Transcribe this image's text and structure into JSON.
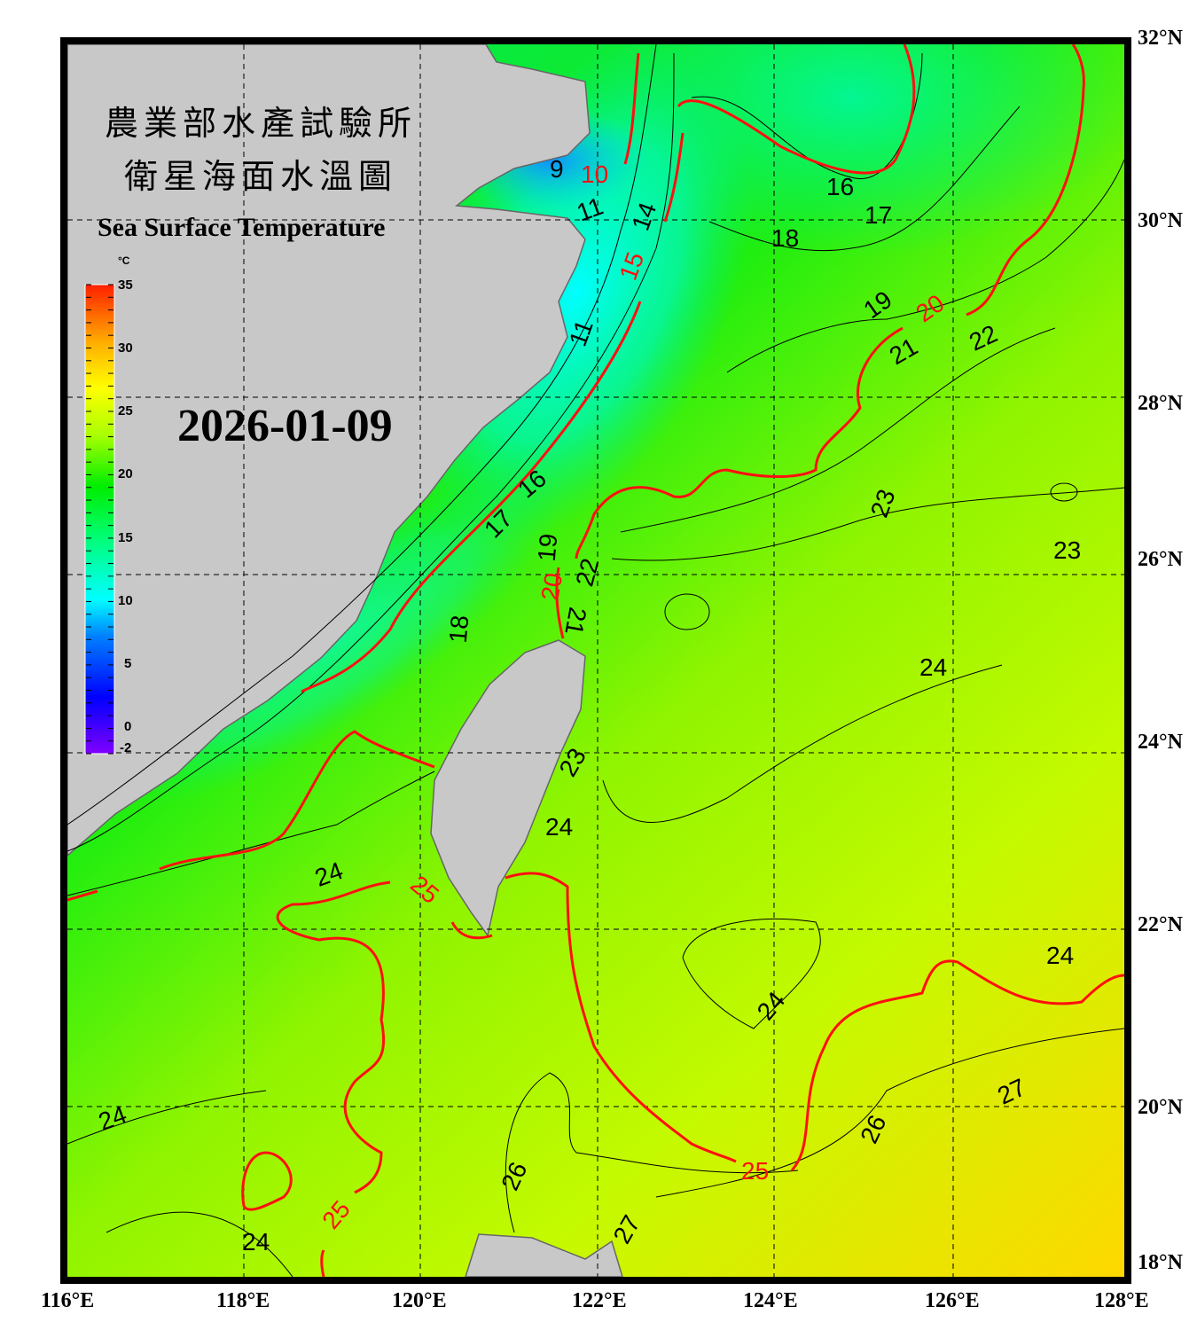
{
  "title_cn_line1": "農業部水產試驗所",
  "title_cn_line2": "衛星海面水溫圖",
  "title_en": "Sea Surface Temperature",
  "date": "2026-01-09",
  "colorbar": {
    "unit": "°C",
    "min": -2,
    "max": 35,
    "ticks": [
      "35",
      "30",
      "25",
      "20",
      "15",
      "10",
      "5",
      "0",
      "-2"
    ],
    "colors": [
      "#8000ff",
      "#0000ff",
      "#0080ff",
      "#00ffff",
      "#00ff80",
      "#00ee00",
      "#aaff00",
      "#ffff00",
      "#ffaa00",
      "#ff2000"
    ]
  },
  "lon_labels": [
    "116°E",
    "118°E",
    "120°E",
    "122°E",
    "124°E",
    "126°E",
    "128°E"
  ],
  "lat_labels": [
    "32°N",
    "30°N",
    "28°N",
    "26°N",
    "24°N",
    "22°N",
    "20°N",
    "18°N"
  ],
  "contour_labels": [
    "9",
    "10",
    "11",
    "14",
    "15",
    "11",
    "16",
    "17",
    "18",
    "19",
    "20",
    "21",
    "22",
    "16",
    "17",
    "19",
    "20",
    "22",
    "21",
    "18",
    "23",
    "23",
    "24",
    "23",
    "24",
    "24",
    "25",
    "24",
    "24",
    "27",
    "26",
    "25",
    "26",
    "24",
    "24",
    "25",
    "27"
  ],
  "colors": {
    "land": "#c8c8c8",
    "contour": "#000000",
    "highlight_contour": "#ff1010",
    "frame": "#000000"
  }
}
